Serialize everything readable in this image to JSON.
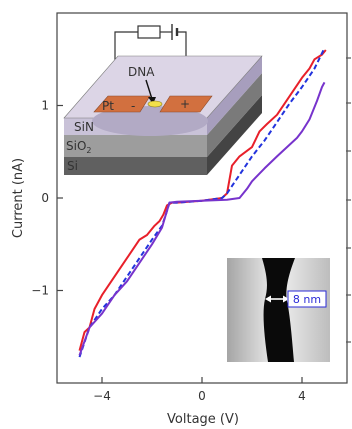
{
  "chart_data": {
    "type": "line",
    "xlabel": "Voltage (V)",
    "ylabel": "Current (nA)",
    "xlim": [
      -5.8,
      5.8
    ],
    "ylim": [
      -2.0,
      2.0
    ],
    "x_ticks": [
      {
        "value": -4,
        "label": "−4"
      },
      {
        "value": 0,
        "label": "0"
      },
      {
        "value": 4,
        "label": "4"
      }
    ],
    "y_ticks": [
      {
        "value": 1,
        "label": "1"
      },
      {
        "value": 0,
        "label": "0"
      },
      {
        "value": -1,
        "label": "−1"
      }
    ],
    "grid": false,
    "series": [
      {
        "color": "#e8202a",
        "style": "solid",
        "x": [
          -4.9,
          -4.7,
          -4.5,
          -4.3,
          -4.0,
          -3.5,
          -3.0,
          -2.5,
          -2.2,
          -1.9,
          -1.7,
          -1.55,
          -1.4,
          -1.2,
          -1.0,
          0.0,
          0.8,
          1.0,
          1.2,
          1.5,
          2.0,
          2.3,
          2.6,
          3.0,
          3.5,
          4.0,
          4.3,
          4.5,
          4.8,
          4.95
        ],
        "y": [
          -1.65,
          -1.45,
          -1.4,
          -1.2,
          -1.05,
          -0.85,
          -0.65,
          -0.45,
          -0.4,
          -0.3,
          -0.25,
          -0.18,
          -0.08,
          -0.05,
          -0.05,
          -0.03,
          0.0,
          0.05,
          0.35,
          0.45,
          0.55,
          0.72,
          0.8,
          0.9,
          1.1,
          1.3,
          1.4,
          1.5,
          1.55,
          1.6
        ]
      },
      {
        "color": "#2233dd",
        "style": "dashed",
        "x": [
          -4.9,
          -4.5,
          -4.0,
          -3.5,
          -3.0,
          -2.5,
          -2.0,
          -1.6,
          -1.45,
          -1.3,
          -1.0,
          0.0,
          0.8,
          1.0,
          1.5,
          2.0,
          2.5,
          3.0,
          3.5,
          4.0,
          4.5,
          4.9
        ],
        "y": [
          -1.72,
          -1.4,
          -1.2,
          -1.05,
          -0.85,
          -0.65,
          -0.45,
          -0.3,
          -0.18,
          -0.05,
          -0.05,
          -0.03,
          0.0,
          0.05,
          0.25,
          0.45,
          0.62,
          0.82,
          1.02,
          1.2,
          1.4,
          1.62
        ]
      },
      {
        "color": "#7733cc",
        "style": "solid",
        "x": [
          -4.9,
          -4.5,
          -4.0,
          -3.5,
          -3.0,
          -2.5,
          -2.0,
          -1.6,
          -1.45,
          -1.3,
          -1.0,
          0.0,
          1.0,
          1.5,
          1.8,
          2.0,
          2.5,
          3.0,
          3.4,
          3.8,
          4.0,
          4.3,
          4.6,
          4.8,
          4.9
        ],
        "y": [
          -1.7,
          -1.4,
          -1.25,
          -1.05,
          -0.9,
          -0.7,
          -0.5,
          -0.32,
          -0.18,
          -0.05,
          -0.04,
          -0.03,
          -0.02,
          0.0,
          0.1,
          0.18,
          0.32,
          0.45,
          0.55,
          0.65,
          0.72,
          0.85,
          1.05,
          1.2,
          1.25
        ]
      }
    ],
    "insets": {
      "device_labels": {
        "dna": "DNA",
        "pt": "Pt",
        "minus": "-",
        "plus": "+",
        "sin": "SiN",
        "sio2": "SiO",
        "sio2_sub": "2",
        "si": "Si"
      },
      "tem_scale_label": "8 nm"
    }
  }
}
